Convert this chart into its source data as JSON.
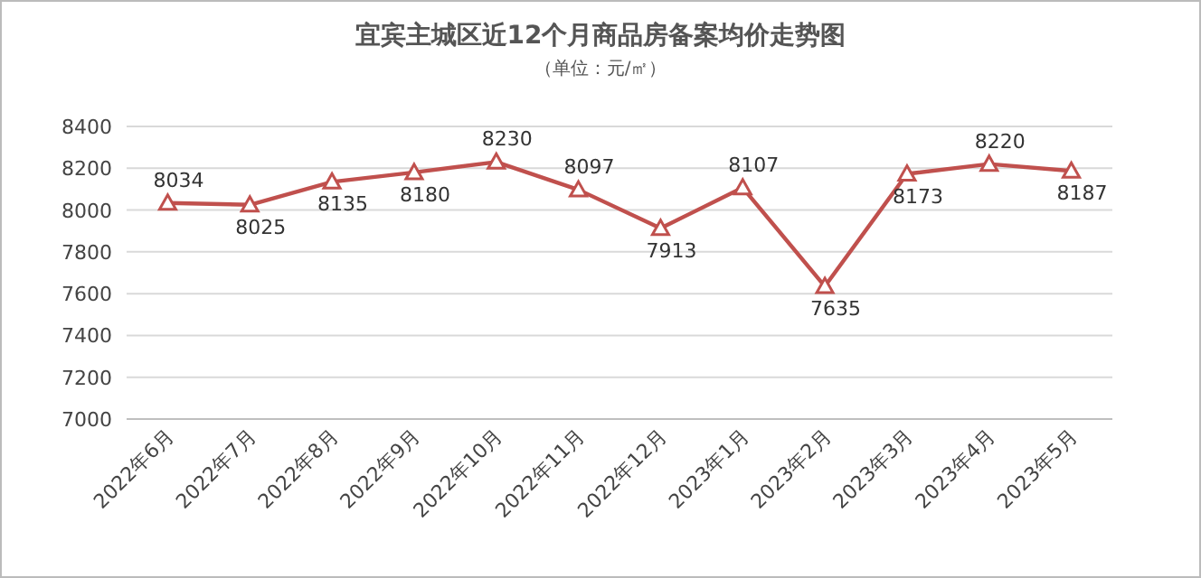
{
  "chart_data": {
    "type": "line",
    "title": "宜宾主城区近12个月商品房备案均价走势图",
    "subtitle": "（单位：元/㎡）",
    "categories": [
      "2022年6月",
      "2022年7月",
      "2022年8月",
      "2022年9月",
      "2022年10月",
      "2022年11月",
      "2022年12月",
      "2023年1月",
      "2023年2月",
      "2023年3月",
      "2023年4月",
      "2023年5月"
    ],
    "series": [
      {
        "color": "#c0504d",
        "values": [
          8034,
          8025,
          8135,
          8180,
          8230,
          8097,
          7913,
          8107,
          7635,
          8173,
          8220,
          8187
        ]
      }
    ],
    "ylim": [
      7000,
      8400
    ],
    "yticks": [
      7000,
      7200,
      7400,
      7600,
      7800,
      8000,
      8200,
      8400
    ],
    "grid": "y",
    "marker": "triangle",
    "data_labels": true
  }
}
